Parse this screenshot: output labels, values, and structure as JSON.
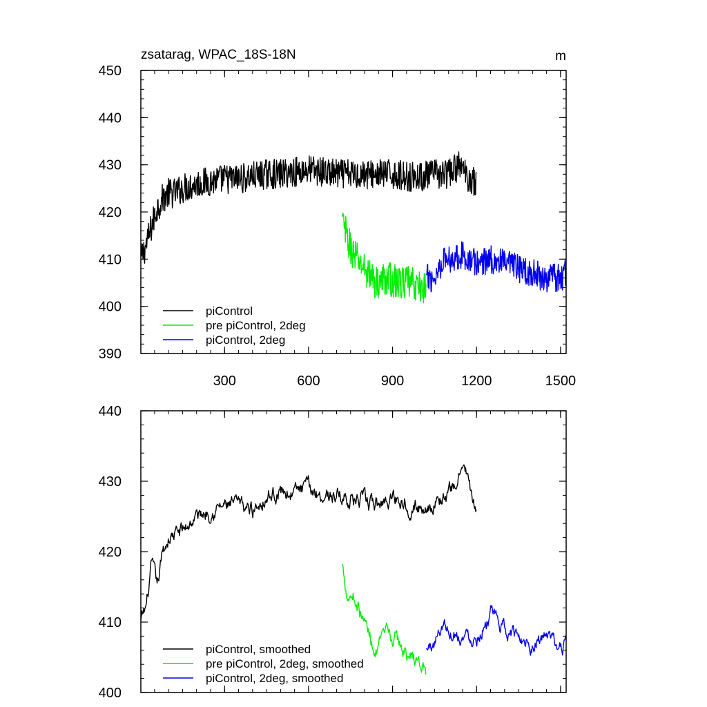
{
  "chart_data": [
    {
      "type": "line",
      "title": "zsatarag, WPAC_18S-18N",
      "unit": "m",
      "xlim": [
        1,
        1520
      ],
      "ylim": [
        390,
        450
      ],
      "xticks": [
        300,
        600,
        900,
        1200,
        1500
      ],
      "xtick_labels": [
        "300",
        "600",
        "900",
        "1200",
        "1500"
      ],
      "yticks": [
        390,
        400,
        410,
        420,
        430,
        440,
        450
      ],
      "ytick_labels": [
        "390",
        "400",
        "410",
        "420",
        "430",
        "440",
        "450"
      ],
      "legend_position": "bottom-left",
      "series": [
        {
          "name": "piControl",
          "color": "#000000",
          "noise": 3.2,
          "points": [
            [
              1,
              410
            ],
            [
              20,
              413
            ],
            [
              40,
              417
            ],
            [
              60,
              421
            ],
            [
              80,
              423
            ],
            [
              100,
              424
            ],
            [
              120,
              424
            ],
            [
              150,
              425
            ],
            [
              200,
              426
            ],
            [
              250,
              426.5
            ],
            [
              300,
              427
            ],
            [
              350,
              427
            ],
            [
              400,
              427.5
            ],
            [
              450,
              428
            ],
            [
              500,
              428
            ],
            [
              550,
              428.5
            ],
            [
              600,
              429
            ],
            [
              650,
              428.5
            ],
            [
              700,
              428
            ],
            [
              750,
              428
            ],
            [
              800,
              428
            ],
            [
              850,
              428
            ],
            [
              900,
              428
            ],
            [
              950,
              427.5
            ],
            [
              1000,
              427.5
            ],
            [
              1050,
              428
            ],
            [
              1100,
              428
            ],
            [
              1140,
              430
            ],
            [
              1160,
              428
            ],
            [
              1200,
              426
            ]
          ]
        },
        {
          "name": "pre piControl, 2deg",
          "color": "#00ee00",
          "noise": 3.6,
          "points": [
            [
              721,
              418
            ],
            [
              740,
              414
            ],
            [
              760,
              411
            ],
            [
              800,
              408
            ],
            [
              840,
              405
            ],
            [
              880,
              406
            ],
            [
              920,
              405
            ],
            [
              960,
              405
            ],
            [
              1000,
              404
            ],
            [
              1020,
              404
            ]
          ]
        },
        {
          "name": "piControl, 2deg",
          "color": "#0000ee",
          "noise": 3.0,
          "points": [
            [
              1021,
              406
            ],
            [
              1050,
              406
            ],
            [
              1080,
              410
            ],
            [
              1100,
              410
            ],
            [
              1150,
              411
            ],
            [
              1200,
              409
            ],
            [
              1250,
              410
            ],
            [
              1300,
              409
            ],
            [
              1350,
              408
            ],
            [
              1400,
              407
            ],
            [
              1450,
              406
            ],
            [
              1500,
              406
            ],
            [
              1520,
              407
            ]
          ]
        }
      ]
    },
    {
      "type": "line",
      "xlim": [
        1,
        1520
      ],
      "ylim": [
        400,
        440
      ],
      "xticks": [
        300,
        600,
        900,
        1200,
        1500
      ],
      "xtick_labels": [],
      "yticks": [
        400,
        410,
        420,
        430,
        440
      ],
      "ytick_labels": [
        "400",
        "410",
        "420",
        "430",
        "440"
      ],
      "legend_position": "bottom-left",
      "series": [
        {
          "name": "piControl, smoothed",
          "color": "#000000",
          "noise": 1.6,
          "points": [
            [
              1,
              410
            ],
            [
              20,
              412
            ],
            [
              40,
              418
            ],
            [
              60,
              415
            ],
            [
              80,
              420
            ],
            [
              100,
              422
            ],
            [
              150,
              423
            ],
            [
              200,
              425
            ],
            [
              250,
              426
            ],
            [
              300,
              426.5
            ],
            [
              350,
              426.5
            ],
            [
              400,
              426
            ],
            [
              450,
              428
            ],
            [
              500,
              428.5
            ],
            [
              550,
              428.5
            ],
            [
              600,
              429
            ],
            [
              650,
              428
            ],
            [
              700,
              428
            ],
            [
              750,
              427.5
            ],
            [
              800,
              427
            ],
            [
              850,
              426.5
            ],
            [
              900,
              428
            ],
            [
              950,
              427
            ],
            [
              1000,
              426
            ],
            [
              1050,
              427
            ],
            [
              1100,
              428
            ],
            [
              1140,
              431
            ],
            [
              1160,
              432
            ],
            [
              1180,
              428
            ],
            [
              1200,
              425
            ]
          ]
        },
        {
          "name": "pre piControl, 2deg, smoothed",
          "color": "#00ee00",
          "noise": 1.6,
          "points": [
            [
              721,
              418
            ],
            [
              740,
              414
            ],
            [
              760,
              414
            ],
            [
              800,
              410
            ],
            [
              840,
              406
            ],
            [
              880,
              408
            ],
            [
              920,
              407
            ],
            [
              960,
              405
            ],
            [
              1000,
              404
            ],
            [
              1020,
              403
            ]
          ]
        },
        {
          "name": "piControl, 2deg, smoothed",
          "color": "#0000ee",
          "noise": 1.5,
          "points": [
            [
              1021,
              406
            ],
            [
              1050,
              407
            ],
            [
              1080,
              410
            ],
            [
              1100,
              409
            ],
            [
              1150,
              408
            ],
            [
              1200,
              408
            ],
            [
              1250,
              411
            ],
            [
              1300,
              409
            ],
            [
              1350,
              408
            ],
            [
              1400,
              407
            ],
            [
              1450,
              408
            ],
            [
              1500,
              406
            ],
            [
              1520,
              407
            ]
          ]
        }
      ]
    }
  ]
}
